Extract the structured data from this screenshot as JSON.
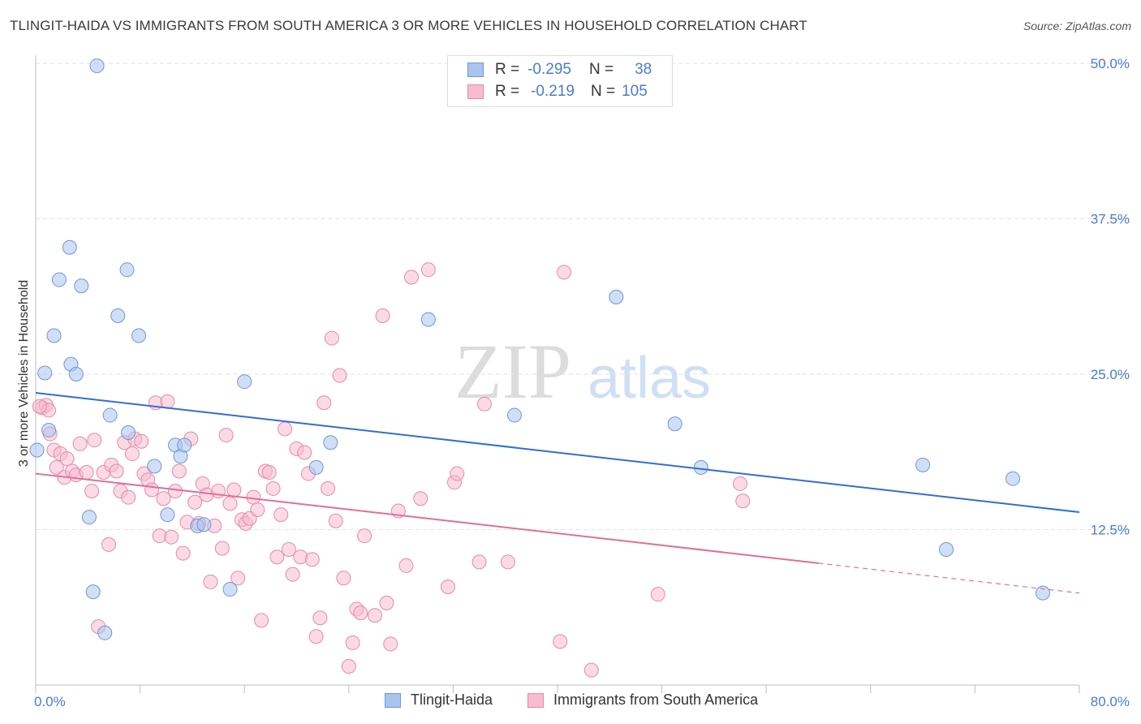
{
  "title": "TLINGIT-HAIDA VS IMMIGRANTS FROM SOUTH AMERICA 3 OR MORE VEHICLES IN HOUSEHOLD CORRELATION CHART",
  "source": "Source: ZipAtlas.com",
  "watermark": {
    "zip": "ZIP",
    "atlas": "atlas"
  },
  "legend": {
    "rows": [
      {
        "r_label": "R =",
        "r_value": "-0.295",
        "n_label": "N =",
        "n_value": "38",
        "color": "#a9c4ef",
        "stroke": "#6f97d8"
      },
      {
        "r_label": "R =",
        "r_value": "-0.219",
        "n_label": "N =",
        "n_value": "105",
        "color": "#f7bcd0",
        "stroke": "#e58aaa"
      }
    ]
  },
  "bottom_legend": [
    {
      "label": "Tlingit-Haida",
      "color": "#a9c4ef",
      "stroke": "#6f97d8"
    },
    {
      "label": "Immigrants from South America",
      "color": "#f7bcd0",
      "stroke": "#e58aaa"
    }
  ],
  "chart_data": {
    "type": "scatter",
    "xlabel": "",
    "ylabel": "3 or more Vehicles in Household",
    "xlim": [
      0,
      80
    ],
    "ylim": [
      0,
      50
    ],
    "x_tick_labels": [
      "0.0%",
      "80.0%"
    ],
    "y_tick_labels": [
      "12.5%",
      "25.0%",
      "37.5%",
      "50.0%"
    ],
    "y_ticks": [
      12.5,
      25.0,
      37.5,
      50.0
    ],
    "grid": true,
    "series": [
      {
        "name": "Tlingit-Haida",
        "color": "#6f97d8",
        "fill": "#a9c4ef",
        "trend": {
          "x": [
            0,
            80
          ],
          "y": [
            23.5,
            13.9
          ],
          "style": "solid",
          "color": "#2f6fd0"
        },
        "points": [
          [
            4.7,
            49.8
          ],
          [
            0.7,
            25.1
          ],
          [
            1.0,
            20.5
          ],
          [
            1.4,
            28.1
          ],
          [
            2.6,
            35.2
          ],
          [
            1.8,
            32.6
          ],
          [
            2.7,
            25.8
          ],
          [
            3.1,
            25.0
          ],
          [
            3.5,
            32.1
          ],
          [
            4.1,
            13.5
          ],
          [
            4.4,
            7.5
          ],
          [
            5.3,
            4.2
          ],
          [
            5.7,
            21.7
          ],
          [
            6.3,
            29.7
          ],
          [
            7.0,
            33.4
          ],
          [
            7.1,
            20.3
          ],
          [
            7.9,
            28.1
          ],
          [
            9.1,
            17.6
          ],
          [
            10.1,
            13.7
          ],
          [
            10.7,
            19.3
          ],
          [
            11.1,
            18.4
          ],
          [
            11.4,
            19.3
          ],
          [
            12.4,
            12.8
          ],
          [
            12.9,
            12.9
          ],
          [
            14.9,
            7.7
          ],
          [
            16.0,
            24.4
          ],
          [
            21.5,
            17.5
          ],
          [
            22.6,
            19.5
          ],
          [
            30.1,
            29.4
          ],
          [
            36.7,
            21.7
          ],
          [
            44.5,
            31.2
          ],
          [
            49.0,
            21.0
          ],
          [
            51.0,
            17.5
          ],
          [
            68.0,
            17.7
          ],
          [
            69.8,
            10.9
          ],
          [
            74.9,
            16.6
          ],
          [
            77.2,
            7.4
          ],
          [
            0.1,
            18.9
          ]
        ]
      },
      {
        "name": "Immigrants from South America",
        "color": "#e58aaa",
        "fill": "#f7bcd0",
        "trend": {
          "x": [
            0,
            60
          ],
          "y": [
            17.0,
            9.8
          ],
          "style": "solid",
          "dashed_to": [
            80,
            7.4
          ],
          "color": "#e06f98"
        },
        "points": [
          [
            0.5,
            22.3
          ],
          [
            0.8,
            22.5
          ],
          [
            1.0,
            22.1
          ],
          [
            1.1,
            20.2
          ],
          [
            1.4,
            18.9
          ],
          [
            1.6,
            17.5
          ],
          [
            1.9,
            18.6
          ],
          [
            2.2,
            16.7
          ],
          [
            2.4,
            18.2
          ],
          [
            2.8,
            17.2
          ],
          [
            3.1,
            16.9
          ],
          [
            3.4,
            19.4
          ],
          [
            3.9,
            17.1
          ],
          [
            4.3,
            15.6
          ],
          [
            4.5,
            19.7
          ],
          [
            4.8,
            4.7
          ],
          [
            5.2,
            17.1
          ],
          [
            5.6,
            11.3
          ],
          [
            5.8,
            17.7
          ],
          [
            6.2,
            17.2
          ],
          [
            6.5,
            15.6
          ],
          [
            6.8,
            19.5
          ],
          [
            7.1,
            15.1
          ],
          [
            7.4,
            18.6
          ],
          [
            7.6,
            19.8
          ],
          [
            8.1,
            19.6
          ],
          [
            8.3,
            17.0
          ],
          [
            8.6,
            16.5
          ],
          [
            8.9,
            15.7
          ],
          [
            9.2,
            22.7
          ],
          [
            9.5,
            12.0
          ],
          [
            9.8,
            15.0
          ],
          [
            10.1,
            22.8
          ],
          [
            10.4,
            11.9
          ],
          [
            10.7,
            15.6
          ],
          [
            11.0,
            17.2
          ],
          [
            11.3,
            10.6
          ],
          [
            11.6,
            13.1
          ],
          [
            11.9,
            19.8
          ],
          [
            12.2,
            14.7
          ],
          [
            12.5,
            13.0
          ],
          [
            12.8,
            16.2
          ],
          [
            13.1,
            15.3
          ],
          [
            13.4,
            8.3
          ],
          [
            13.7,
            12.8
          ],
          [
            14.0,
            15.6
          ],
          [
            14.3,
            11.0
          ],
          [
            14.6,
            20.1
          ],
          [
            14.9,
            14.6
          ],
          [
            15.2,
            15.7
          ],
          [
            15.5,
            8.6
          ],
          [
            15.8,
            13.3
          ],
          [
            16.1,
            13.0
          ],
          [
            16.4,
            13.4
          ],
          [
            16.7,
            15.1
          ],
          [
            17.0,
            14.1
          ],
          [
            17.3,
            5.2
          ],
          [
            17.6,
            17.2
          ],
          [
            17.9,
            17.1
          ],
          [
            18.2,
            15.8
          ],
          [
            18.5,
            10.3
          ],
          [
            18.8,
            13.7
          ],
          [
            19.1,
            20.6
          ],
          [
            19.4,
            10.9
          ],
          [
            19.7,
            8.9
          ],
          [
            20.0,
            19.0
          ],
          [
            20.3,
            10.3
          ],
          [
            20.6,
            18.7
          ],
          [
            20.9,
            17.0
          ],
          [
            21.2,
            10.1
          ],
          [
            21.5,
            3.9
          ],
          [
            21.8,
            5.4
          ],
          [
            22.1,
            22.7
          ],
          [
            22.4,
            15.8
          ],
          [
            22.7,
            27.9
          ],
          [
            23.0,
            13.2
          ],
          [
            23.3,
            24.9
          ],
          [
            23.6,
            8.6
          ],
          [
            24.0,
            1.5
          ],
          [
            24.3,
            3.4
          ],
          [
            24.6,
            6.1
          ],
          [
            24.9,
            5.8
          ],
          [
            25.2,
            12.0
          ],
          [
            26.0,
            5.6
          ],
          [
            26.6,
            29.7
          ],
          [
            26.9,
            6.6
          ],
          [
            27.2,
            3.3
          ],
          [
            27.8,
            14.0
          ],
          [
            28.4,
            9.6
          ],
          [
            28.8,
            32.8
          ],
          [
            29.5,
            15.0
          ],
          [
            30.1,
            33.4
          ],
          [
            31.6,
            7.9
          ],
          [
            32.1,
            16.3
          ],
          [
            32.3,
            17.0
          ],
          [
            34.0,
            9.9
          ],
          [
            34.4,
            22.6
          ],
          [
            36.2,
            9.9
          ],
          [
            40.2,
            3.5
          ],
          [
            40.5,
            33.2
          ],
          [
            42.6,
            1.2
          ],
          [
            47.7,
            7.3
          ],
          [
            54.0,
            16.2
          ],
          [
            54.2,
            14.8
          ],
          [
            0.3,
            22.4
          ]
        ]
      }
    ]
  }
}
